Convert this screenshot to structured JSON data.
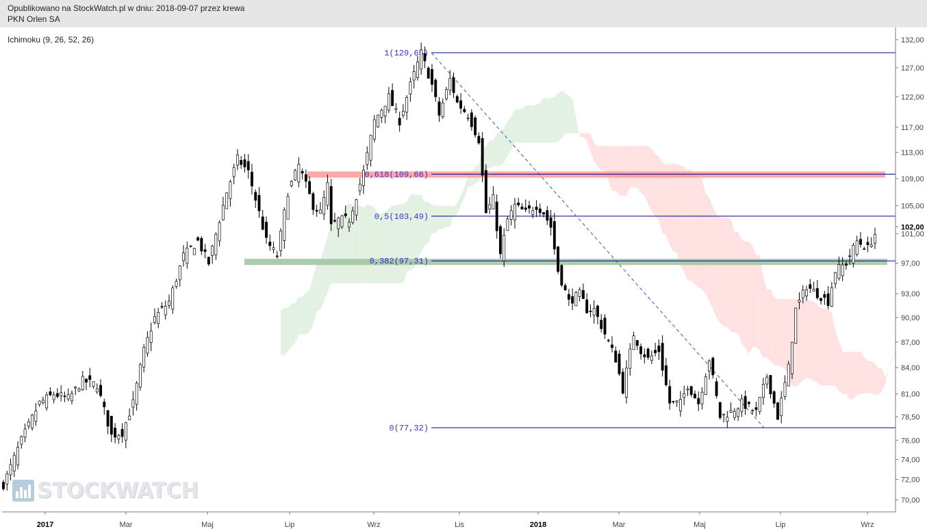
{
  "header": {
    "line1": "Opublikowano na StockWatch.pl w dniu: 2018-09-07 przez krewa",
    "line2": "PKN Orlen SA"
  },
  "indicator_label": "Ichimoku (9, 26, 52, 26)",
  "watermark": "STOCKWATCH",
  "colors": {
    "candle": "#000000",
    "fib_line": "#00008b",
    "fib_text": "#3333cc",
    "zone_red": "#ff9999",
    "zone_green": "#9dc39d",
    "cloud_green": "#e3f1e3",
    "cloud_red": "#ffe1e1",
    "trend": "#3355cc"
  },
  "chart_data": {
    "type": "candlestick",
    "y_axis": {
      "position": "right",
      "tick_labels": [
        "132,00",
        "127,00",
        "122,00",
        "117,00",
        "113,00",
        "109,00",
        "105,00",
        "102,00",
        "101,00",
        "97,00",
        "93,00",
        "90,00",
        "87,00",
        "84,00",
        "81,00",
        "78,50",
        "76,00",
        "74,00",
        "72,00",
        "70,00"
      ],
      "highlight_label": "102,00",
      "scale": "log",
      "range": [
        69,
        133
      ]
    },
    "x_axis": {
      "tick_labels": [
        "2017",
        "Mar",
        "Maj",
        "Lip",
        "Wrz",
        "Lis",
        "2018",
        "Mar",
        "Maj",
        "Lip",
        "Wrz"
      ],
      "bold_labels": [
        "2017",
        "2018"
      ]
    },
    "fibonacci": [
      {
        "label": "1(129,65)",
        "value": 129.65
      },
      {
        "label": "0,618(109,66)",
        "value": 109.66,
        "zone": "red"
      },
      {
        "label": "0,5(103,49)",
        "value": 103.49
      },
      {
        "label": "0,382(97,31)",
        "value": 97.31,
        "zone": "green"
      },
      {
        "label": "0(77,32)",
        "value": 77.32
      }
    ],
    "trend_line": {
      "from": 129.65,
      "to": 77.32,
      "style": "dashed"
    },
    "close_points": [
      [
        0,
        71.5
      ],
      [
        5,
        76
      ],
      [
        10,
        80
      ],
      [
        14,
        81
      ],
      [
        18,
        80.5
      ],
      [
        22,
        82.5
      ],
      [
        26,
        82
      ],
      [
        30,
        76.5
      ],
      [
        33,
        76.8
      ],
      [
        36,
        80
      ],
      [
        39,
        86
      ],
      [
        42,
        90
      ],
      [
        46,
        92
      ],
      [
        50,
        98
      ],
      [
        54,
        100
      ],
      [
        57,
        97
      ],
      [
        60,
        103
      ],
      [
        62,
        107
      ],
      [
        65,
        112
      ],
      [
        68,
        110
      ],
      [
        71,
        104
      ],
      [
        73,
        100
      ],
      [
        76,
        98
      ],
      [
        79,
        107
      ],
      [
        82,
        111
      ],
      [
        84,
        108
      ],
      [
        86,
        105
      ],
      [
        88,
        104
      ],
      [
        90,
        108
      ],
      [
        91,
        102
      ],
      [
        93,
        103
      ],
      [
        96,
        103
      ],
      [
        100,
        110
      ],
      [
        103,
        118
      ],
      [
        107,
        122
      ],
      [
        110,
        118
      ],
      [
        113,
        124
      ],
      [
        116,
        129.6
      ],
      [
        119,
        124
      ],
      [
        121,
        119
      ],
      [
        124,
        125
      ],
      [
        126,
        121
      ],
      [
        129,
        119
      ],
      [
        132,
        115
      ],
      [
        134,
        104
      ],
      [
        136,
        106
      ],
      [
        138,
        98
      ],
      [
        140,
        103
      ],
      [
        142,
        105
      ],
      [
        145,
        104
      ],
      [
        148,
        105
      ],
      [
        150,
        104
      ],
      [
        152,
        102
      ],
      [
        154,
        96
      ],
      [
        157,
        92
      ],
      [
        160,
        93
      ],
      [
        162,
        91
      ],
      [
        164,
        91
      ],
      [
        167,
        88
      ],
      [
        170,
        85
      ],
      [
        172,
        81.5
      ],
      [
        175,
        88
      ],
      [
        177,
        86
      ],
      [
        179,
        85
      ],
      [
        182,
        86
      ],
      [
        185,
        80
      ],
      [
        188,
        80
      ],
      [
        190,
        82
      ],
      [
        193,
        80
      ],
      [
        196,
        85
      ],
      [
        199,
        78.5
      ],
      [
        202,
        79
      ],
      [
        205,
        80
      ],
      [
        209,
        79
      ],
      [
        212,
        83
      ],
      [
        215,
        78.5
      ],
      [
        218,
        84
      ],
      [
        220,
        91
      ],
      [
        223,
        94
      ],
      [
        226,
        93
      ],
      [
        229,
        92
      ],
      [
        231,
        96
      ],
      [
        234,
        97
      ],
      [
        237,
        100
      ],
      [
        240,
        99
      ],
      [
        242,
        101
      ]
    ]
  }
}
